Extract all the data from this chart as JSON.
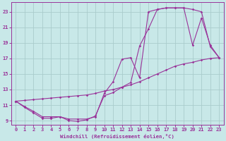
{
  "bg_color": "#c8e8e8",
  "line_color": "#993399",
  "grid_color": "#aacccc",
  "xlabel": "Windchill (Refroidissement éolien,°C)",
  "ylim": [
    8.5,
    24.2
  ],
  "xlim": [
    -0.5,
    23.5
  ],
  "yticks": [
    9,
    11,
    13,
    15,
    17,
    19,
    21,
    23
  ],
  "xticks": [
    0,
    1,
    2,
    3,
    4,
    5,
    6,
    7,
    8,
    9,
    10,
    11,
    12,
    13,
    14,
    15,
    16,
    17,
    18,
    19,
    20,
    21,
    22,
    23
  ],
  "curve1_x": [
    0,
    1,
    2,
    3,
    4,
    5,
    6,
    7,
    8,
    9,
    10,
    11,
    12,
    13,
    14,
    15,
    16,
    17,
    18,
    19,
    20,
    21,
    22,
    23
  ],
  "curve1_y": [
    11.5,
    10.7,
    10.0,
    9.3,
    9.3,
    9.5,
    9.0,
    8.9,
    9.1,
    9.6,
    12.2,
    12.6,
    13.3,
    13.9,
    18.6,
    20.8,
    23.3,
    23.5,
    23.5,
    23.5,
    23.3,
    23.0,
    18.5,
    17.1
  ],
  "curve2_x": [
    0,
    1,
    2,
    3,
    4,
    5,
    6,
    7,
    8,
    9,
    10,
    11,
    12,
    13,
    14,
    15,
    16,
    17,
    18,
    19,
    20,
    21,
    22,
    23
  ],
  "curve2_y": [
    11.5,
    10.8,
    10.2,
    9.5,
    9.5,
    9.5,
    9.2,
    9.2,
    9.2,
    9.5,
    12.5,
    14.0,
    16.9,
    17.1,
    14.5,
    23.0,
    23.3,
    23.5,
    23.5,
    23.5,
    18.7,
    22.2,
    18.7,
    17.1
  ],
  "curve3_x": [
    0,
    1,
    2,
    3,
    4,
    5,
    6,
    7,
    8,
    9,
    10,
    11,
    12,
    13,
    14,
    15,
    16,
    17,
    18,
    19,
    20,
    21,
    22,
    23
  ],
  "curve3_y": [
    11.5,
    11.6,
    11.7,
    11.8,
    11.9,
    12.0,
    12.1,
    12.2,
    12.3,
    12.5,
    12.8,
    13.0,
    13.3,
    13.6,
    14.0,
    14.5,
    15.0,
    15.5,
    16.0,
    16.3,
    16.5,
    16.8,
    17.0,
    17.1
  ]
}
